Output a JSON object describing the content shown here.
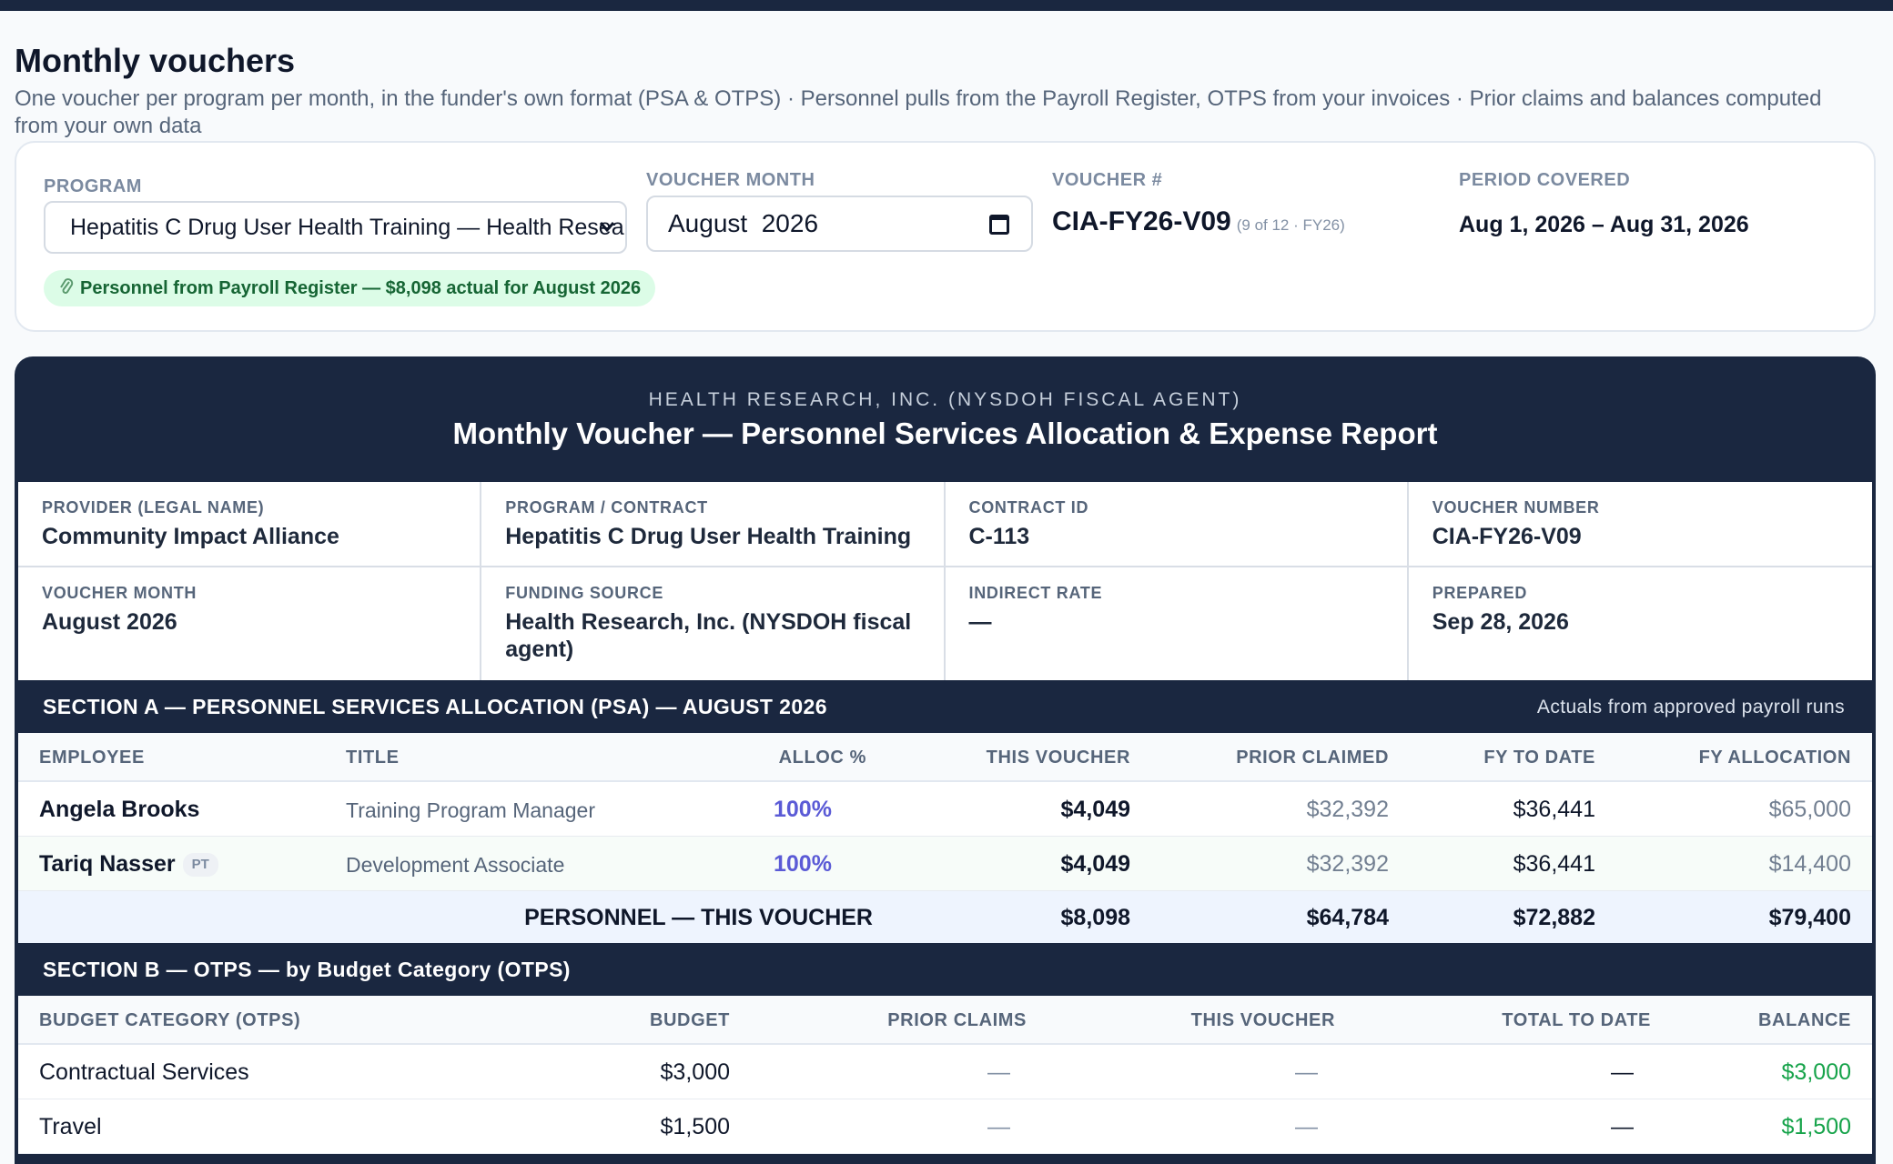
{
  "page": {
    "title": "Monthly vouchers",
    "subtitle": "One voucher per program per month, in the funder's own format (PSA & OTPS) · Personnel pulls from the Payroll Register, OTPS from your invoices · Prior claims and balances computed from your own data"
  },
  "controls": {
    "program_label": "PROGRAM",
    "program_value": "Hepatitis C Drug User Health Training — Health Research, Inc. (NYSDOH fiscal agent)",
    "month_label": "VOUCHER MONTH",
    "month_value": "August  2026",
    "voucher_label": "VOUCHER #",
    "voucher_number": "CIA-FY26-V09",
    "voucher_sub": "(9 of 12 · FY26)",
    "period_label": "PERIOD COVERED",
    "period_value": "Aug 1, 2026 – Aug 31, 2026",
    "pill_text": "Personnel from Payroll Register — $8,098 actual for August 2026"
  },
  "document": {
    "agency": "HEALTH RESEARCH, INC. (NYSDOH FISCAL AGENT)",
    "title": "Monthly Voucher — Personnel Services Allocation & Expense Report",
    "info": [
      [
        {
          "label": "PROVIDER (LEGAL NAME)",
          "value": "Community Impact Alliance"
        },
        {
          "label": "PROGRAM / CONTRACT",
          "value": "Hepatitis C Drug User Health Training"
        },
        {
          "label": "CONTRACT ID",
          "value": "C-113"
        },
        {
          "label": "VOUCHER NUMBER",
          "value": "CIA-FY26-V09"
        }
      ],
      [
        {
          "label": "VOUCHER MONTH",
          "value": "August 2026"
        },
        {
          "label": "FUNDING SOURCE",
          "value": "Health Research, Inc. (NYSDOH fiscal agent)"
        },
        {
          "label": "INDIRECT RATE",
          "value": "—"
        },
        {
          "label": "PREPARED",
          "value": "Sep 28, 2026"
        }
      ]
    ]
  },
  "section_a": {
    "title": "SECTION A — PERSONNEL SERVICES ALLOCATION (PSA) — AUGUST 2026",
    "note": "Actuals from approved payroll runs",
    "headers": {
      "employee": "EMPLOYEE",
      "title": "TITLE",
      "alloc": "ALLOC %",
      "this_voucher": "THIS VOUCHER",
      "prior_claimed": "PRIOR CLAIMED",
      "fy_to_date": "FY TO DATE",
      "fy_allocation": "FY ALLOCATION"
    },
    "rows": [
      {
        "employee": "Angela Brooks",
        "badge": "",
        "title": "Training Program Manager",
        "alloc": "100%",
        "this_voucher": "$4,049",
        "prior_claimed": "$32,392",
        "fy_to_date": "$36,441",
        "fy_allocation": "$65,000"
      },
      {
        "employee": "Tariq Nasser",
        "badge": "PT",
        "title": "Development Associate",
        "alloc": "100%",
        "this_voucher": "$4,049",
        "prior_claimed": "$32,392",
        "fy_to_date": "$36,441",
        "fy_allocation": "$14,400"
      }
    ],
    "total": {
      "label": "PERSONNEL — THIS VOUCHER",
      "this_voucher": "$8,098",
      "prior_claimed": "$64,784",
      "fy_to_date": "$72,882",
      "fy_allocation": "$79,400"
    }
  },
  "section_b": {
    "title": "SECTION B — OTPS — by Budget Category (OTPS)",
    "headers": {
      "category": "BUDGET CATEGORY (OTPS)",
      "budget": "BUDGET",
      "prior_claims": "PRIOR CLAIMS",
      "this_voucher": "THIS VOUCHER",
      "total_to_date": "TOTAL TO DATE",
      "balance": "BALANCE"
    },
    "rows": [
      {
        "category": "Contractual Services",
        "budget": "$3,000",
        "prior_claims": "—",
        "this_voucher": "—",
        "total_to_date": "—",
        "balance": "$3,000"
      },
      {
        "category": "Travel",
        "budget": "$1,500",
        "prior_claims": "—",
        "this_voucher": "—",
        "total_to_date": "—",
        "balance": "$1,500"
      }
    ]
  }
}
